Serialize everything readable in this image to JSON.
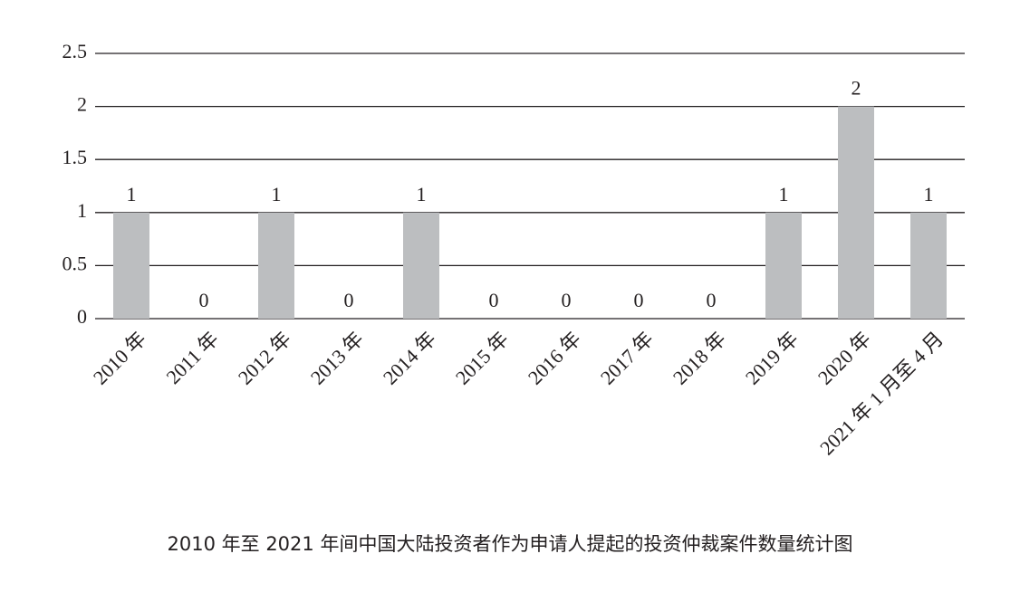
{
  "chart_data": {
    "type": "bar",
    "title": "2010 年至 2021 年间中国大陆投资者作为申请人提起的投资仲裁案件数量统计图",
    "categories": [
      "2010 年",
      "2011 年",
      "2012 年",
      "2013 年",
      "2014 年",
      "2015 年",
      "2016 年",
      "2017 年",
      "2018 年",
      "2019 年",
      "2020 年",
      "2021 年 1 月至 4 月"
    ],
    "values": [
      1,
      0,
      1,
      0,
      1,
      0,
      0,
      0,
      0,
      1,
      2,
      1
    ],
    "color": "#bcbec0",
    "ylim": [
      0,
      2.5
    ],
    "yticks": [
      0,
      0.5,
      1,
      1.5,
      2,
      2.5
    ],
    "grid": true
  }
}
